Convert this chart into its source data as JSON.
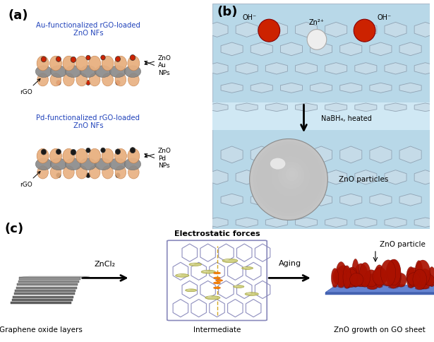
{
  "fig_width": 6.15,
  "fig_height": 4.84,
  "dpi": 100,
  "bg_color": "#ffffff",
  "panel_a_label": "(a)",
  "panel_b_label": "(b)",
  "panel_c_label": "(c)",
  "au_title": "Au-functionalized rGO-loaded\nZnO NFs",
  "pd_title": "Pd-functionalized rGO-loaded\nZnO NFs",
  "au_color": "#cc2200",
  "pd_color": "#1a1a1a",
  "zno_color": "#e8b080",
  "rgo_color": "#888888",
  "label_color_blue": "#2244bb",
  "panel_b_bg": "#b8d8e8",
  "panel_b_mid_bg": "#d0e8f4",
  "graphene_hex_fill": "#c8dce8",
  "graphene_hex_edge": "#8899aa",
  "nabh4_text": "NaBH₄, heated",
  "znO_particles_text": "ZnO particles",
  "c_go_text": "Graphene oxide layers",
  "c_intermediate_text": "Intermediate",
  "c_zno_growth_text": "ZnO growth on GO sheet",
  "c_znCl2_text": "ZnCl₂",
  "c_aging_text": "Aging",
  "c_electrostatic_text": "Electrostatic forces",
  "c_zno_particle_text": "ZnO particle",
  "c_intermediate_hex_color": "#8888bb",
  "c_intermediate_ball_color": "#cccc77",
  "c_zno_growth_red": "#aa1100",
  "c_zno_growth_blue": "#5577cc",
  "oh_red": "#cc2200",
  "zn_white": "#eeeeee"
}
